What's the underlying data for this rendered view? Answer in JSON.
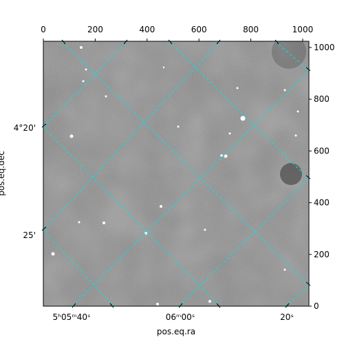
{
  "chart_data": {
    "type": "image",
    "xlabel": "pos.eq.ra",
    "ylabel": "pos.eq.dec",
    "xlim": [
      0,
      1024
    ],
    "ylim": [
      0,
      1024
    ],
    "xticks": [
      0,
      200,
      400,
      600,
      800,
      1000
    ],
    "yticks": [
      0,
      200,
      400,
      600,
      800,
      1000
    ],
    "world_xticks": [
      "5ʰ05ᵐ40ˢ",
      "06ᵐ00ˢ",
      "20ˢ"
    ],
    "world_yticks": [
      "4°20'",
      "25'"
    ]
  }
}
